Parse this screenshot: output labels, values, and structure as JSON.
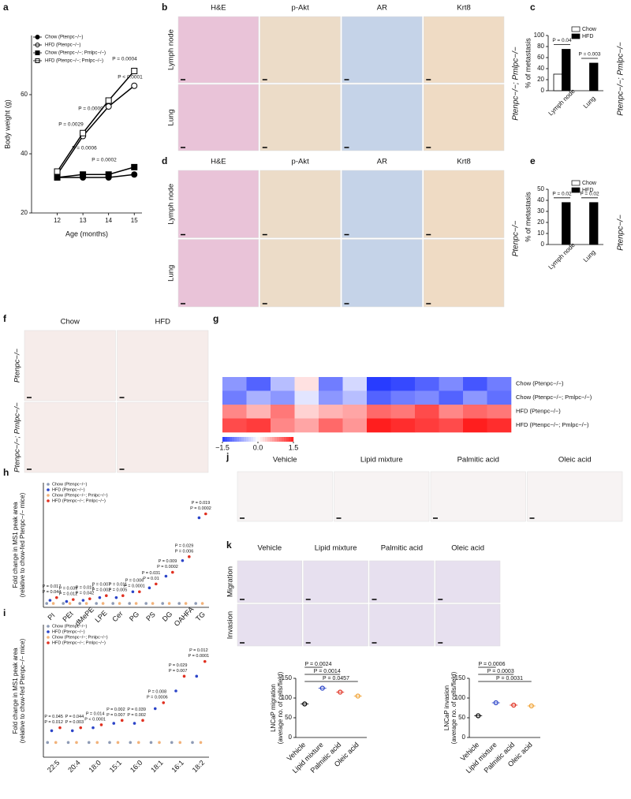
{
  "chart_data": [
    {
      "panel": "a",
      "type": "line",
      "xlabel": "Age (months)",
      "ylabel": "Body weight (g)",
      "x": [
        12,
        13,
        14,
        15
      ],
      "xlim": [
        11,
        15.3
      ],
      "xticks": [
        12,
        13,
        14,
        15
      ],
      "ylim": [
        20,
        80
      ],
      "yticks": [
        20,
        40,
        60
      ],
      "series": [
        {
          "name": "Chow (Ptenpc−/−)",
          "color": "#000000",
          "marker": "circle",
          "filled": true,
          "values": [
            32,
            32,
            32,
            33
          ]
        },
        {
          "name": "HFD (Ptenpc−/−)",
          "color": "#000000",
          "marker": "circle",
          "filled": false,
          "values": [
            33,
            46,
            56,
            63
          ]
        },
        {
          "name": "Chow (Ptenpc−/−; Pmlpc−/−)",
          "color": "#000000",
          "marker": "square",
          "filled": true,
          "values": [
            32,
            33,
            33,
            35.5
          ]
        },
        {
          "name": "HFD (Ptenpc−/−; Pmlpc−/−)",
          "color": "#000000",
          "marker": "square",
          "filled": false,
          "values": [
            34,
            47,
            58,
            68
          ]
        }
      ],
      "annotations": [
        "P = 0.0029",
        "P = 0.0006",
        "P = 0.0009",
        "P = 0.0002",
        "P = 0.0004",
        "P < 0.0001"
      ]
    },
    {
      "panel": "c",
      "type": "bar",
      "ylabel": "% of metastasis",
      "genotype": "Ptenpc−/−; Pmlpc−/−",
      "categories": [
        "Lymph node",
        "Lung"
      ],
      "ylim": [
        0,
        100
      ],
      "yticks": [
        0,
        20,
        40,
        60,
        80,
        100
      ],
      "series": [
        {
          "name": "Chow",
          "color": "#ffffff",
          "values": [
            30,
            0
          ]
        },
        {
          "name": "HFD",
          "color": "#000000",
          "values": [
            75,
            50
          ]
        }
      ],
      "pvalues": [
        "P = 0.04",
        "P = 0.003"
      ]
    },
    {
      "panel": "e",
      "type": "bar",
      "ylabel": "% of metastasis",
      "genotype": "Ptenpc−/−",
      "categories": [
        "Lymph node",
        "Lung"
      ],
      "ylim": [
        0,
        50
      ],
      "yticks": [
        0,
        10,
        20,
        30,
        40,
        50
      ],
      "series": [
        {
          "name": "Chow",
          "color": "#ffffff",
          "values": [
            0,
            0
          ]
        },
        {
          "name": "HFD",
          "color": "#000000",
          "values": [
            38,
            38
          ]
        }
      ],
      "pvalues": [
        "P = 0.02",
        "P = 0.02"
      ]
    },
    {
      "panel": "g",
      "type": "heatmap",
      "rows": [
        "Chow (Ptenpc−/−)",
        "Chow (Ptenpc−/−; Pmlpc−/−)",
        "HFD (Ptenpc−/−)",
        "HFD (Ptenpc−/−; Pmlpc−/−)"
      ],
      "values": [
        [
          -0.8,
          -1.2,
          -0.5,
          0.2,
          -1.0,
          -0.3,
          -1.5,
          -1.4,
          -1.2,
          -0.9,
          -1.3,
          -1.0
        ],
        [
          -1.0,
          -0.6,
          -0.8,
          -0.2,
          -0.8,
          -0.5,
          -1.2,
          -1.0,
          -0.9,
          -1.2,
          -0.8,
          -1.1
        ],
        [
          0.8,
          0.5,
          0.9,
          0.3,
          0.5,
          0.6,
          1.0,
          0.9,
          1.2,
          0.8,
          1.0,
          0.9
        ],
        [
          1.2,
          1.3,
          0.8,
          0.6,
          1.0,
          0.7,
          1.5,
          1.4,
          1.3,
          1.2,
          1.5,
          1.4
        ]
      ],
      "clim": [
        -1.5,
        1.5
      ],
      "cticks": [
        {
          "value": -1.5,
          "label": "−1.5"
        },
        {
          "value": 0,
          "label": "0.0"
        },
        1.5
      ]
    },
    {
      "panel": "h",
      "type": "dot",
      "ylabel": [
        "Fold change in MS1 peak area",
        "(relative to chow-fed Ptenpc−/− mice)"
      ],
      "categories": [
        "PI",
        "PEt",
        "dMePE",
        "LPE",
        "Cer",
        "PG",
        "PS",
        "DG",
        "OAHFA",
        "TG"
      ],
      "ylim": [
        0,
        32
      ],
      "series": [
        {
          "name": "Chow (Ptenpc−/−)",
          "color": "#8e9bb5",
          "values": [
            1,
            1,
            1,
            1,
            1,
            1,
            1,
            1,
            1,
            1
          ]
        },
        {
          "name": "HFD (Ptenpc−/−)",
          "color": "#2b44c8",
          "values": [
            1.8,
            1.5,
            1.8,
            2.5,
            2.5,
            4,
            5,
            8,
            12,
            23
          ]
        },
        {
          "name": "Chow (Ptenpc−/−; Pmlpc−/−)",
          "color": "#f2b27a",
          "values": [
            1,
            1,
            1,
            1,
            1,
            1,
            1,
            1,
            1,
            1
          ]
        },
        {
          "name": "HFD (Ptenpc−/−; Pmlpc−/−)",
          "color": "#e03020",
          "values": [
            2.5,
            2,
            2.2,
            3,
            3,
            4,
            6,
            9,
            13,
            24
          ]
        }
      ],
      "pvalues": [
        [
          "P = 0.017",
          "P = 0.044"
        ],
        [
          "P = 0.039",
          "P = 0.012"
        ],
        [
          "P = 0.015",
          "P = 0.042"
        ],
        [
          "P = 0.007",
          "P = 0.002"
        ],
        [
          "P = 0.011",
          "P = 0.005"
        ],
        [
          "P = 0.006",
          "P = 0.0001"
        ],
        [
          "P = 0.031",
          "P = 0.01"
        ],
        [
          "P = 0.009",
          "P = 0.0002"
        ],
        [
          "P = 0.029",
          "P = 0.006"
        ],
        [
          "P = 0.019",
          "P = 0.0002"
        ]
      ]
    },
    {
      "panel": "i",
      "type": "dot",
      "ylabel": [
        "Fold change in MS1 peak area",
        "(relative to chow-fed Ptenpc−/− mice)"
      ],
      "categories": [
        "22:5",
        "20:4",
        "18:0",
        "15:1",
        "16:0",
        "18:1",
        "16:1",
        "18:2"
      ],
      "ylim": [
        0,
        9
      ],
      "series": [
        {
          "name": "Chow (Ptenpc−/−)",
          "color": "#8e9bb5",
          "values": [
            1,
            1,
            1,
            1,
            1,
            1,
            1,
            1
          ]
        },
        {
          "name": "HFD (Ptenpc−/−)",
          "color": "#2b44c8",
          "values": [
            1.8,
            1.8,
            2,
            2.3,
            2.3,
            3.3,
            4.5,
            5.5
          ]
        },
        {
          "name": "Chow (Ptenpc−/−; Pmlpc−/−)",
          "color": "#f2b27a",
          "values": [
            1,
            1,
            1,
            1,
            1,
            1,
            1,
            1
          ]
        },
        {
          "name": "HFD (Ptenpc−/−; Pmlpc−/−)",
          "color": "#e03020",
          "values": [
            2,
            2,
            2.2,
            2.5,
            2.5,
            3.7,
            5.5,
            6.5
          ]
        }
      ],
      "pvalues": [
        [
          "P = 0.045",
          "P = 0.012"
        ],
        [
          "P = 0.044",
          "P = 0.003"
        ],
        [
          "P = 0.014",
          "P < 0.0001"
        ],
        [
          "P = 0.002",
          "P = 0.007"
        ],
        [
          "P = 0.039",
          "P = 0.002"
        ],
        [
          "P = 0.008",
          "P = 0.0006"
        ],
        [
          "P = 0.029",
          "P = 0.007"
        ],
        [
          "P = 0.012",
          "P = 0.0001"
        ]
      ]
    },
    {
      "panel": "k",
      "type": "group",
      "ylabel": [
        "LNCaP migration",
        "(average no. of cells/field)"
      ],
      "categories": [
        "Vehicle",
        "Lipid mixture",
        "Palmitic acid",
        "Oleic acid"
      ],
      "ylim": [
        0,
        150
      ],
      "yticks": [
        0,
        50,
        100,
        150
      ],
      "values": [
        85,
        125,
        115,
        105
      ],
      "colors": [
        "#000000",
        "#2b44c8",
        "#e03020",
        "#f0a030"
      ],
      "pvalues": [
        "P = 0.0024",
        "P = 0.0014",
        "P = 0.0457"
      ]
    },
    {
      "panel": "k",
      "type": "group",
      "ylabel": [
        "LNCaP invasion",
        "(average no. of cells/field)"
      ],
      "categories": [
        "Vehicle",
        "Lipid mixture",
        "Palmitic acid",
        "Oleic acid"
      ],
      "ylim": [
        0,
        150
      ],
      "yticks": [
        0,
        50,
        100,
        150
      ],
      "values": [
        55,
        88,
        82,
        80
      ],
      "colors": [
        "#000000",
        "#2b44c8",
        "#e03020",
        "#f0a030"
      ],
      "pvalues": [
        "P = 0.0006",
        "P = 0.0003",
        "P = 0.0031"
      ]
    }
  ],
  "image_panels": [
    {
      "panel": "b",
      "columns": [
        "H&E",
        "p-Akt",
        "AR",
        "Krt8"
      ],
      "rows": [
        "Lymph node",
        "Lung"
      ],
      "genotype": "Ptenpc−/−; Pmlpc−/−"
    },
    {
      "panel": "d",
      "columns": [
        "H&E",
        "p-Akt",
        "AR",
        "Krt8"
      ],
      "rows": [
        "Lymph node",
        "Lung"
      ],
      "genotype": "Ptenpc−/−"
    },
    {
      "panel": "f",
      "columns": [
        "Chow",
        "HFD"
      ],
      "rows": [
        "Ptenpc−/−",
        "Ptenpc−/−; Pmlpc−/−"
      ]
    },
    {
      "panel": "j",
      "columns": [
        "Vehicle",
        "Lipid mixture",
        "Palmitic acid",
        "Oleic acid"
      ]
    },
    {
      "panel": "k",
      "columns": [
        "Vehicle",
        "Lipid mixture",
        "Palmitic acid",
        "Oleic acid"
      ],
      "rows": [
        "Migration",
        "Invasion"
      ]
    }
  ]
}
